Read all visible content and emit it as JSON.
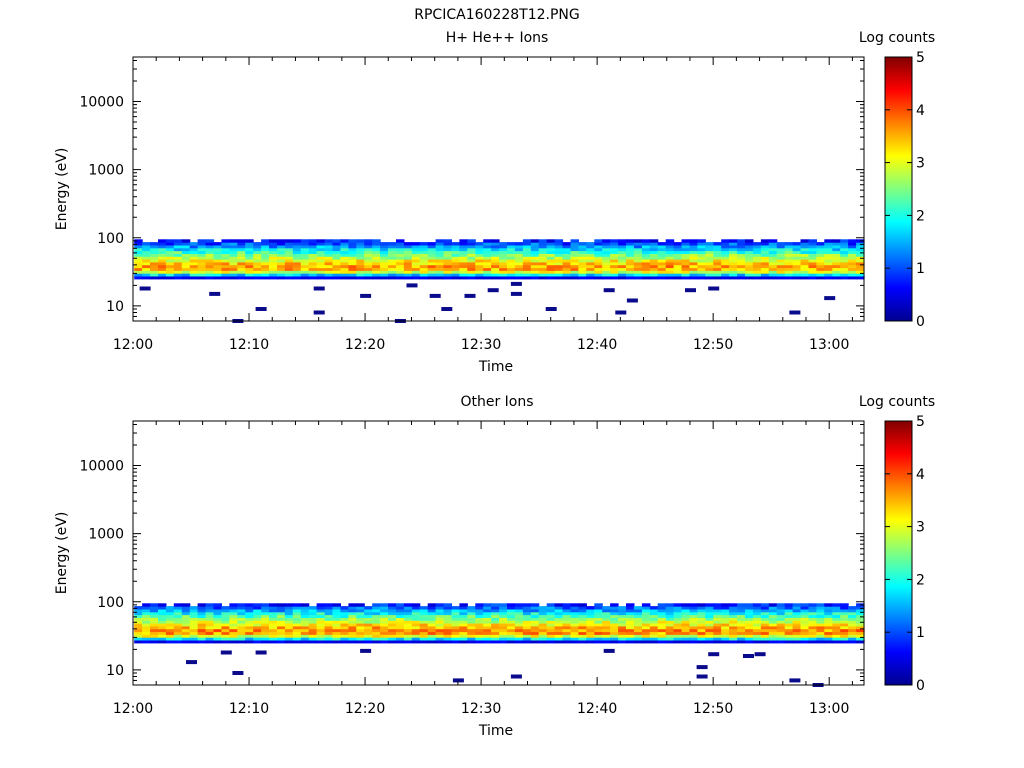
{
  "figure_title": "RPCICA160228T12.PNG",
  "colors": {
    "background": "#ffffff",
    "axis": "#000000",
    "scatter_low": "#0a0a8c"
  },
  "chart_data": [
    {
      "type": "heatmap",
      "title": "H+ He++ Ions",
      "xlabel": "Time",
      "ylabel": "Energy (eV)",
      "x_range": [
        "12:00",
        "13:03"
      ],
      "x_ticks": [
        "12:00",
        "12:10",
        "12:20",
        "12:30",
        "12:40",
        "12:50",
        "13:00"
      ],
      "y_scale": "log",
      "y_range": [
        6,
        45000
      ],
      "y_ticks": [
        "10",
        "100",
        "1000",
        "10000"
      ],
      "colorbar": {
        "label": "Log counts",
        "range": [
          0,
          5
        ],
        "ticks": [
          "0",
          "1",
          "2",
          "3",
          "4",
          "5"
        ],
        "colormap": "jet"
      },
      "band": {
        "energy_min_eV": 25,
        "energy_max_eV": 95,
        "peak_energy_eV": 37,
        "peak_log_counts": 3.6
      },
      "sparse_points": [
        {
          "time": "12:01",
          "energy_eV": 18
        },
        {
          "time": "12:07",
          "energy_eV": 15
        },
        {
          "time": "12:09",
          "energy_eV": 6
        },
        {
          "time": "12:11",
          "energy_eV": 9
        },
        {
          "time": "12:16",
          "energy_eV": 8
        },
        {
          "time": "12:16",
          "energy_eV": 18
        },
        {
          "time": "12:20",
          "energy_eV": 14
        },
        {
          "time": "12:23",
          "energy_eV": 6
        },
        {
          "time": "12:24",
          "energy_eV": 20
        },
        {
          "time": "12:26",
          "energy_eV": 14
        },
        {
          "time": "12:27",
          "energy_eV": 9
        },
        {
          "time": "12:29",
          "energy_eV": 14
        },
        {
          "time": "12:31",
          "energy_eV": 17
        },
        {
          "time": "12:33",
          "energy_eV": 21
        },
        {
          "time": "12:33",
          "energy_eV": 15
        },
        {
          "time": "12:36",
          "energy_eV": 9
        },
        {
          "time": "12:41",
          "energy_eV": 17
        },
        {
          "time": "12:42",
          "energy_eV": 8
        },
        {
          "time": "12:43",
          "energy_eV": 12
        },
        {
          "time": "12:48",
          "energy_eV": 17
        },
        {
          "time": "12:50",
          "energy_eV": 18
        },
        {
          "time": "12:57",
          "energy_eV": 8
        },
        {
          "time": "13:00",
          "energy_eV": 13
        }
      ]
    },
    {
      "type": "heatmap",
      "title": "Other Ions",
      "xlabel": "Time",
      "ylabel": "Energy (eV)",
      "x_range": [
        "12:00",
        "13:03"
      ],
      "x_ticks": [
        "12:00",
        "12:10",
        "12:20",
        "12:30",
        "12:40",
        "12:50",
        "13:00"
      ],
      "y_scale": "log",
      "y_range": [
        6,
        45000
      ],
      "y_ticks": [
        "10",
        "100",
        "1000",
        "10000"
      ],
      "colorbar": {
        "label": "Log counts",
        "range": [
          0,
          5
        ],
        "ticks": [
          "0",
          "1",
          "2",
          "3",
          "4",
          "5"
        ],
        "colormap": "jet"
      },
      "band": {
        "energy_min_eV": 25,
        "energy_max_eV": 95,
        "peak_energy_eV": 37,
        "peak_log_counts": 3.7
      },
      "sparse_points": [
        {
          "time": "12:05",
          "energy_eV": 13
        },
        {
          "time": "12:08",
          "energy_eV": 18
        },
        {
          "time": "12:09",
          "energy_eV": 9
        },
        {
          "time": "12:11",
          "energy_eV": 18
        },
        {
          "time": "12:20",
          "energy_eV": 19
        },
        {
          "time": "12:28",
          "energy_eV": 7
        },
        {
          "time": "12:33",
          "energy_eV": 8
        },
        {
          "time": "12:41",
          "energy_eV": 19
        },
        {
          "time": "12:49",
          "energy_eV": 8
        },
        {
          "time": "12:49",
          "energy_eV": 11
        },
        {
          "time": "12:50",
          "energy_eV": 17
        },
        {
          "time": "12:53",
          "energy_eV": 16
        },
        {
          "time": "12:54",
          "energy_eV": 17
        },
        {
          "time": "12:57",
          "energy_eV": 7
        },
        {
          "time": "12:59",
          "energy_eV": 6
        }
      ]
    }
  ]
}
